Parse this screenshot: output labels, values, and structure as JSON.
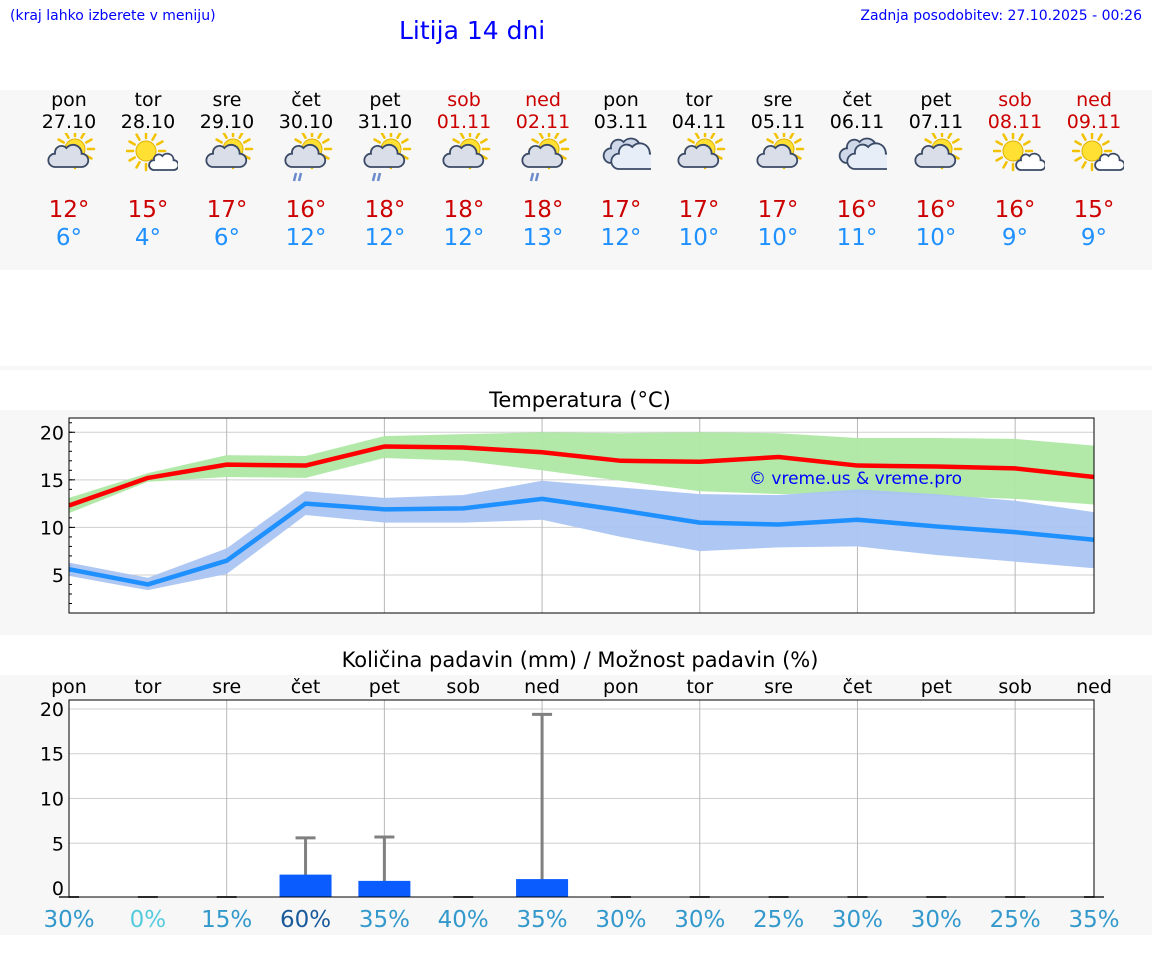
{
  "header": {
    "location_hint": "(kraj lahko izberete v meniju)",
    "title": "Litija 14 dni",
    "updated": "Zadnja posodobitev: 27.10.2025 - 00:26"
  },
  "colors": {
    "weekday": "#000000",
    "weekend": "#cc0000",
    "tmax": "#cc0000",
    "tmin": "#1e90ff",
    "title": "#0000ff"
  },
  "days": [
    {
      "name": "pon",
      "date": "27.10",
      "weekend": false,
      "icon": "sun-cloud-icon",
      "tmax": "12°",
      "tmin": "6°"
    },
    {
      "name": "tor",
      "date": "28.10",
      "weekend": false,
      "icon": "sun-small-cloud-icon",
      "tmax": "15°",
      "tmin": "4°"
    },
    {
      "name": "sre",
      "date": "29.10",
      "weekend": false,
      "icon": "sun-cloud-icon",
      "tmax": "17°",
      "tmin": "6°"
    },
    {
      "name": "čet",
      "date": "30.10",
      "weekend": false,
      "icon": "sun-cloud-rain-icon",
      "tmax": "16°",
      "tmin": "12°"
    },
    {
      "name": "pet",
      "date": "31.10",
      "weekend": false,
      "icon": "sun-cloud-rain-icon",
      "tmax": "18°",
      "tmin": "12°"
    },
    {
      "name": "sob",
      "date": "01.11",
      "weekend": true,
      "icon": "sun-cloud-icon",
      "tmax": "18°",
      "tmin": "12°"
    },
    {
      "name": "ned",
      "date": "02.11",
      "weekend": true,
      "icon": "sun-cloud-rain-icon",
      "tmax": "18°",
      "tmin": "13°"
    },
    {
      "name": "pon",
      "date": "03.11",
      "weekend": false,
      "icon": "cloudy-icon",
      "tmax": "17°",
      "tmin": "12°"
    },
    {
      "name": "tor",
      "date": "04.11",
      "weekend": false,
      "icon": "sun-cloud-icon",
      "tmax": "17°",
      "tmin": "10°"
    },
    {
      "name": "sre",
      "date": "05.11",
      "weekend": false,
      "icon": "sun-cloud-icon",
      "tmax": "17°",
      "tmin": "10°"
    },
    {
      "name": "čet",
      "date": "06.11",
      "weekend": false,
      "icon": "cloudy-icon",
      "tmax": "16°",
      "tmin": "11°"
    },
    {
      "name": "pet",
      "date": "07.11",
      "weekend": false,
      "icon": "sun-cloud-icon",
      "tmax": "16°",
      "tmin": "10°"
    },
    {
      "name": "sob",
      "date": "08.11",
      "weekend": true,
      "icon": "sun-small-cloud-icon",
      "tmax": "16°",
      "tmin": "9°"
    },
    {
      "name": "ned",
      "date": "09.11",
      "weekend": true,
      "icon": "sun-small-cloud-icon",
      "tmax": "15°",
      "tmin": "9°"
    }
  ],
  "chart_data": [
    {
      "type": "line",
      "title": "Temperatura (°C)",
      "watermark": "© vreme.us & vreme.pro",
      "x": [
        "pon",
        "tor",
        "sre",
        "čet",
        "pet",
        "sob",
        "ned",
        "pon",
        "tor",
        "sre",
        "čet",
        "pet",
        "sob",
        "ned"
      ],
      "ylim": [
        1,
        21.5
      ],
      "yticks": [
        5,
        10,
        15,
        20
      ],
      "grid": true,
      "series": [
        {
          "values": [
            12.3,
            15.2,
            16.6,
            16.5,
            18.5,
            18.4,
            17.9,
            17.0,
            16.9,
            17.4,
            16.5,
            16.4,
            16.2,
            15.3
          ],
          "color": "#ff0000",
          "band_low": [
            11.5,
            14.8,
            15.3,
            15.2,
            17.3,
            17.0,
            16.0,
            14.9,
            13.8,
            13.5,
            13.6,
            13.3,
            13.0,
            12.4
          ],
          "band_high": [
            13.1,
            15.7,
            17.6,
            17.5,
            19.6,
            19.8,
            20.0,
            19.9,
            20.0,
            19.9,
            19.4,
            19.4,
            19.3,
            18.6
          ],
          "band_color": "#aee8a4"
        },
        {
          "values": [
            5.6,
            4.0,
            6.5,
            12.5,
            11.9,
            12.0,
            13.0,
            11.8,
            10.5,
            10.3,
            10.8,
            10.1,
            9.5,
            8.7
          ],
          "color": "#1e90ff",
          "band_low": [
            4.9,
            3.4,
            5.1,
            11.3,
            10.5,
            10.5,
            10.8,
            9.0,
            7.5,
            7.9,
            8.0,
            7.1,
            6.4,
            5.7
          ],
          "band_high": [
            6.3,
            4.7,
            7.8,
            13.8,
            13.1,
            13.4,
            14.9,
            14.2,
            13.5,
            13.4,
            14.0,
            13.5,
            12.8,
            11.6
          ],
          "band_color": "#aac4f2"
        }
      ]
    },
    {
      "type": "bar",
      "title": "Količina padavin (mm) / Možnost padavin (%)",
      "categories": [
        "pon",
        "tor",
        "sre",
        "čet",
        "pet",
        "sob",
        "ned",
        "pon",
        "tor",
        "sre",
        "čet",
        "pet",
        "sob",
        "ned"
      ],
      "values": [
        0,
        0,
        0,
        1.5,
        0.8,
        0,
        1.0,
        0,
        0,
        0,
        0,
        0,
        0,
        0
      ],
      "max_values": [
        0,
        0,
        0,
        5.6,
        5.7,
        0,
        19.4,
        0,
        0,
        0,
        0,
        0,
        0,
        0
      ],
      "ylim": [
        -1,
        21
      ],
      "yticks": [
        0,
        5,
        10,
        15,
        20
      ],
      "bar_color": "#0a5cff",
      "whisker_color": "#808080",
      "probability": [
        "30%",
        "0%",
        "15%",
        "60%",
        "35%",
        "40%",
        "35%",
        "30%",
        "30%",
        "25%",
        "30%",
        "30%",
        "25%",
        "35%"
      ],
      "probability_colors": [
        "#3399cc",
        "#55ccdd",
        "#3399cc",
        "#1a5a9a",
        "#3399cc",
        "#3399cc",
        "#3399cc",
        "#3399cc",
        "#3399cc",
        "#3399cc",
        "#3399cc",
        "#3399cc",
        "#3399cc",
        "#3399cc"
      ]
    }
  ]
}
